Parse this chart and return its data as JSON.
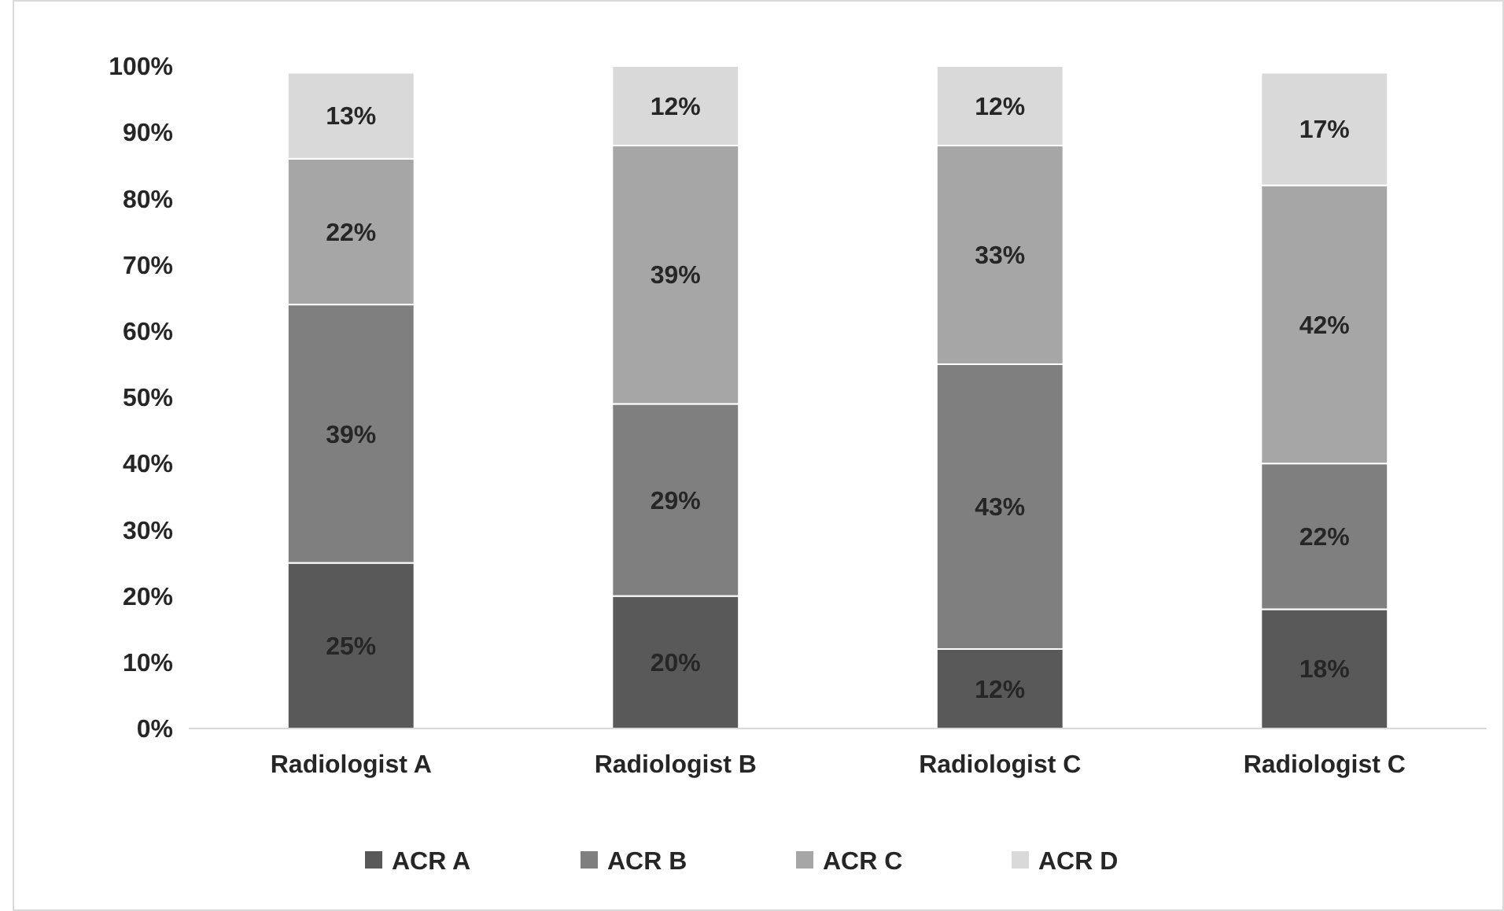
{
  "chart_data": {
    "type": "bar",
    "stacked": true,
    "categories": [
      "Radiologist A",
      "Radiologist B",
      "Radiologist C",
      "Radiologist C"
    ],
    "series": [
      {
        "name": "ACR A",
        "color": "#595959",
        "values": [
          25,
          20,
          12,
          18
        ],
        "value_labels": [
          "25%",
          "20%",
          "12%",
          "18%"
        ]
      },
      {
        "name": "ACR B",
        "color": "#7f7f7f",
        "values": [
          39,
          29,
          43,
          22
        ],
        "value_labels": [
          "39%",
          "29%",
          "43%",
          "22%"
        ]
      },
      {
        "name": "ACR C",
        "color": "#a6a6a6",
        "values": [
          22,
          39,
          33,
          42
        ],
        "value_labels": [
          "22%",
          "39%",
          "33%",
          "42%"
        ]
      },
      {
        "name": "ACR D",
        "color": "#d9d9d9",
        "values": [
          13,
          12,
          12,
          17
        ],
        "value_labels": [
          "13%",
          "12%",
          "12%",
          "17%"
        ]
      }
    ],
    "ylim": [
      0,
      100
    ],
    "yticks": [
      {
        "value": 0,
        "label": "0%"
      },
      {
        "value": 10,
        "label": "10%"
      },
      {
        "value": 20,
        "label": "20%"
      },
      {
        "value": 30,
        "label": "30%"
      },
      {
        "value": 40,
        "label": "40%"
      },
      {
        "value": 50,
        "label": "50%"
      },
      {
        "value": 60,
        "label": "60%"
      },
      {
        "value": 70,
        "label": "70%"
      },
      {
        "value": 80,
        "label": "80%"
      },
      {
        "value": 90,
        "label": "90%"
      },
      {
        "value": 100,
        "label": "100%"
      }
    ],
    "grid": false,
    "legend": "bottom"
  }
}
